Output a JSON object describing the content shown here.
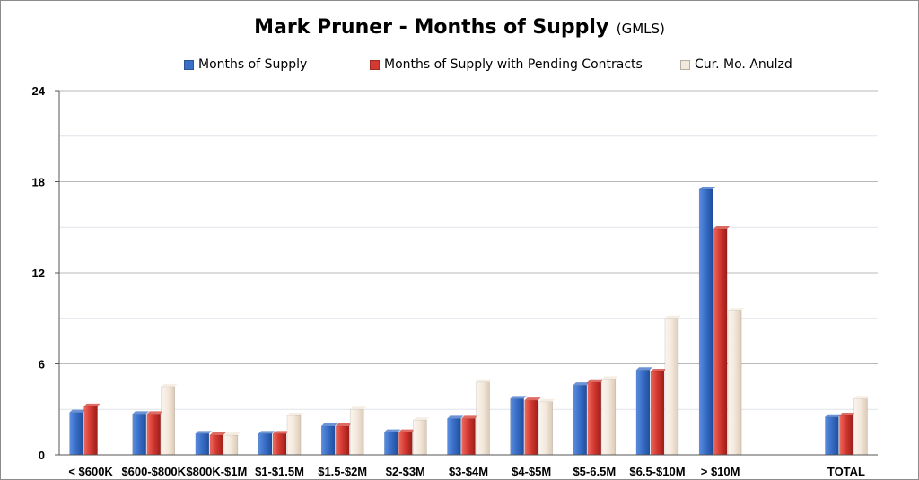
{
  "chart_data": {
    "type": "bar",
    "title": "Mark Pruner - Months of Supply",
    "subtitle": "(GMLS)",
    "xlabel": "",
    "ylabel": "",
    "ylim": [
      0,
      24
    ],
    "yticks": [
      "0",
      "6",
      "12",
      "18",
      "24"
    ],
    "grid": true,
    "legend_position": "top",
    "categories": [
      "< $600K",
      "$600-$800K",
      "$800K-$1M",
      "$1-$1.5M",
      "$1.5-$2M",
      "$2-$3M",
      "$3-$4M",
      "$4-$5M",
      "$5-6.5M",
      "$6.5-$10M",
      "> $10M",
      "",
      "TOTAL"
    ],
    "series": [
      {
        "name": "Months of Supply",
        "color": "#3a6fc8",
        "values": [
          2.8,
          2.7,
          1.4,
          1.4,
          1.9,
          1.5,
          2.4,
          3.7,
          4.6,
          5.6,
          17.5,
          null,
          2.5
        ]
      },
      {
        "name": "Months of Supply with Pending Contracts",
        "color": "#d43a32",
        "values": [
          3.2,
          2.7,
          1.3,
          1.4,
          1.9,
          1.5,
          2.4,
          3.6,
          4.8,
          5.5,
          14.9,
          null,
          2.6
        ]
      },
      {
        "name": "Cur. Mo. Anulzd",
        "color": "#f3e8dc",
        "values": [
          null,
          4.5,
          1.3,
          2.6,
          3.0,
          2.3,
          4.8,
          3.5,
          5.0,
          9.0,
          9.5,
          null,
          3.7
        ]
      }
    ]
  }
}
